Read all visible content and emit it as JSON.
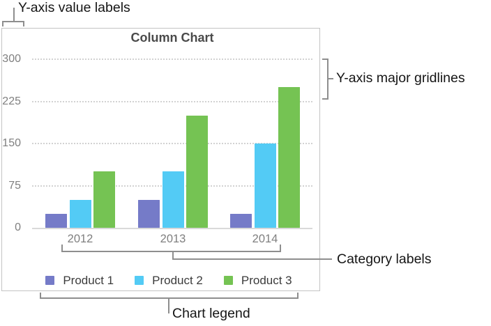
{
  "annotations": {
    "y_value_labels": "Y-axis value labels",
    "y_major_gridlines": "Y-axis major gridlines",
    "category_labels": "Category labels",
    "chart_legend": "Chart legend"
  },
  "chart_data": {
    "type": "bar",
    "title": "Column Chart",
    "categories": [
      "2012",
      "2013",
      "2014"
    ],
    "series": [
      {
        "name": "Product 1",
        "color": "#757BC8",
        "values": [
          25,
          50,
          25
        ]
      },
      {
        "name": "Product 2",
        "color": "#53CBF5",
        "values": [
          50,
          100,
          150
        ]
      },
      {
        "name": "Product 3",
        "color": "#75C353",
        "values": [
          100,
          200,
          250
        ]
      }
    ],
    "yticks": [
      0,
      75,
      150,
      225,
      300
    ],
    "ylim": [
      0,
      300
    ],
    "xlabel": "",
    "ylabel": "",
    "grid": "major-horizontal-dotted",
    "legend_position": "bottom"
  },
  "colors": {
    "callout": "#8e8e8e",
    "title_text": "#4a4a4a",
    "axis_text": "#7f7f7f",
    "legend_text": "#3b3b3b",
    "gridline": "#d2d2d2",
    "axis_line": "#d9d9d9",
    "frame_border": "#c3c3c3",
    "annotation_text": "#151515"
  }
}
